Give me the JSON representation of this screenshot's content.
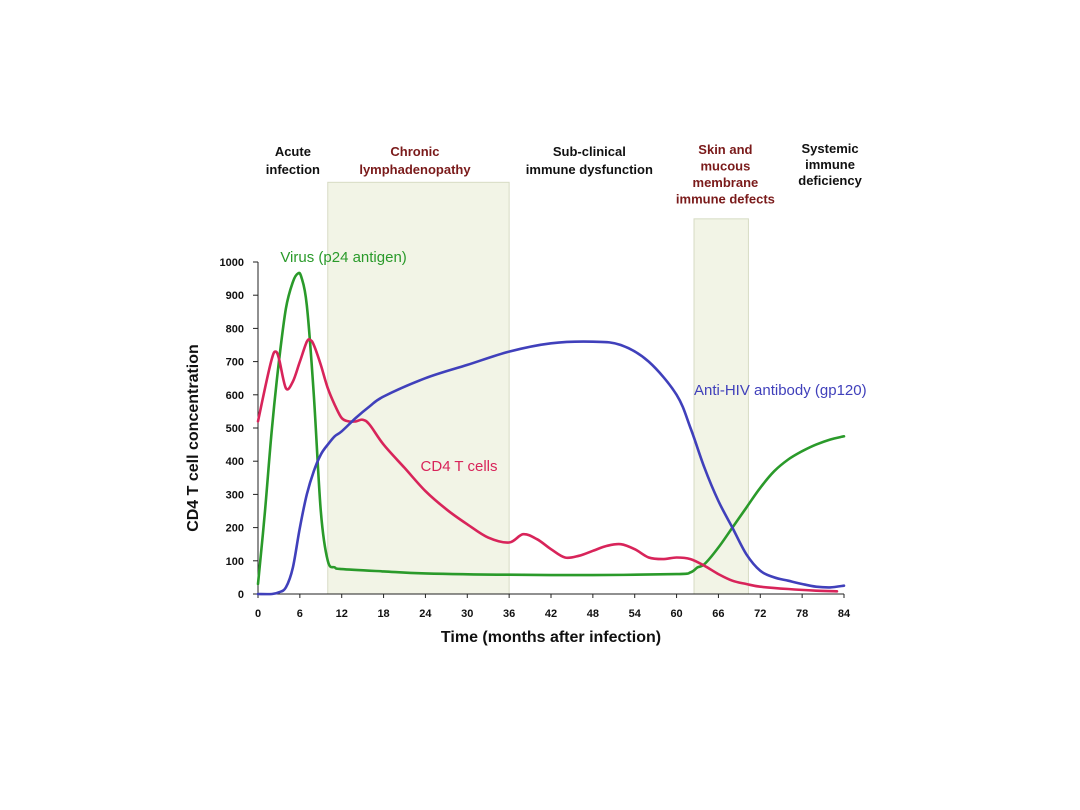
{
  "chart_data": {
    "type": "line",
    "xlabel": "Time (months after infection)",
    "ylabel": "CD4 T cell concentration",
    "xlim": [
      0,
      84
    ],
    "ylim": [
      0,
      1000
    ],
    "x_ticks": [
      "0",
      "6",
      "12",
      "18",
      "24",
      "30",
      "36",
      "42",
      "48",
      "54",
      "60",
      "66",
      "72",
      "78",
      "84"
    ],
    "y_ticks": [
      "0",
      "100",
      "200",
      "300",
      "400",
      "500",
      "600",
      "700",
      "800",
      "900",
      "1000"
    ],
    "phases": [
      {
        "lines": [
          "Acute",
          "infection"
        ],
        "color": "#111111",
        "x_center": 5
      },
      {
        "lines": [
          "Chronic",
          "lymphadenopathy"
        ],
        "color": "#7a1a1a",
        "x_center": 22.5
      },
      {
        "lines": [
          "Sub-clinical",
          "immune dysfunction"
        ],
        "color": "#111111",
        "x_center": 47.5
      },
      {
        "lines": [
          "Skin and",
          "mucous",
          "membrane",
          "immune defects"
        ],
        "color": "#7a1a1a",
        "x_center": 67
      },
      {
        "lines": [
          "Systemic",
          "immune",
          "deficiency"
        ],
        "color": "#111111",
        "x_center": 82
      }
    ],
    "shaded_regions": [
      {
        "x": [
          10,
          36
        ],
        "y_top": 1240
      },
      {
        "x": [
          62.5,
          70.3
        ],
        "y_top": 1130
      }
    ],
    "series": [
      {
        "name": "Virus (p24 antigen)",
        "color": "#2a9a2a",
        "label_pos": [
          3.2,
          1000
        ],
        "x": [
          0,
          1,
          2,
          3,
          4,
          5,
          5.7,
          6.2,
          7,
          8,
          9,
          10,
          11,
          12,
          18,
          24,
          36,
          48,
          60,
          62,
          63,
          64,
          66,
          68,
          70,
          72,
          74,
          76,
          78,
          80,
          82,
          84
        ],
        "y": [
          30,
          250,
          500,
          700,
          860,
          940,
          965,
          955,
          870,
          600,
          250,
          100,
          80,
          75,
          68,
          62,
          58,
          57,
          60,
          65,
          80,
          90,
          140,
          200,
          260,
          320,
          370,
          405,
          430,
          450,
          465,
          475
        ]
      },
      {
        "name": "CD4 T cells",
        "color": "#d8245a",
        "label_pos": [
          23.3,
          370
        ],
        "x": [
          0,
          1,
          2,
          2.5,
          3,
          4,
          5,
          6,
          7,
          7.5,
          8,
          9,
          10,
          11,
          12,
          13,
          14,
          15,
          16,
          18,
          21,
          24,
          27,
          30,
          33,
          36,
          38,
          40,
          42,
          44,
          46,
          48,
          50,
          52,
          54,
          56,
          58,
          60,
          62,
          64,
          66,
          68,
          70,
          72,
          76,
          80,
          83
        ],
        "y": [
          520,
          620,
          710,
          730,
          710,
          620,
          640,
          700,
          760,
          765,
          750,
          690,
          620,
          570,
          530,
          520,
          520,
          525,
          510,
          450,
          380,
          310,
          255,
          210,
          170,
          155,
          180,
          165,
          135,
          110,
          115,
          130,
          145,
          150,
          135,
          110,
          105,
          110,
          105,
          85,
          60,
          40,
          30,
          22,
          15,
          10,
          8
        ]
      },
      {
        "name": "Anti-HIV antibody (gp120)",
        "color": "#4040bb",
        "label_pos": [
          62.5,
          600
        ],
        "x": [
          0,
          2,
          3,
          4,
          5,
          6,
          7,
          8,
          9,
          10,
          11,
          12,
          14,
          16,
          18,
          24,
          30,
          36,
          42,
          48,
          52,
          56,
          60,
          62,
          64,
          66,
          68,
          70,
          72,
          74,
          76,
          78,
          80,
          82,
          84
        ],
        "y": [
          0,
          0,
          5,
          20,
          80,
          200,
          300,
          370,
          420,
          450,
          475,
          490,
          530,
          565,
          595,
          650,
          690,
          730,
          755,
          760,
          750,
          700,
          600,
          500,
          380,
          280,
          200,
          120,
          70,
          50,
          40,
          30,
          22,
          20,
          25
        ]
      }
    ]
  }
}
